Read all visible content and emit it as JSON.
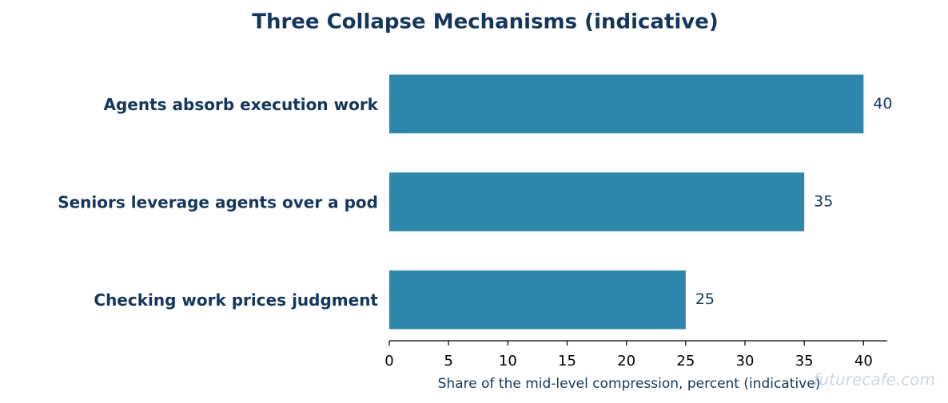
{
  "chart_data": {
    "type": "barh",
    "title": "Three Collapse Mechanisms (indicative)",
    "categories": [
      "Agents absorb execution work",
      "Seniors leverage agents over a pod",
      "Checking work prices judgment"
    ],
    "values": [
      40,
      35,
      25
    ],
    "color": "#2e86ab",
    "xlabel": "Share of the mid-level compression, percent (indicative)",
    "xlim": [
      0,
      42
    ],
    "xticks": [
      0,
      5,
      10,
      15,
      20,
      25,
      30,
      35,
      40
    ],
    "watermark": "futurecafe.com"
  }
}
